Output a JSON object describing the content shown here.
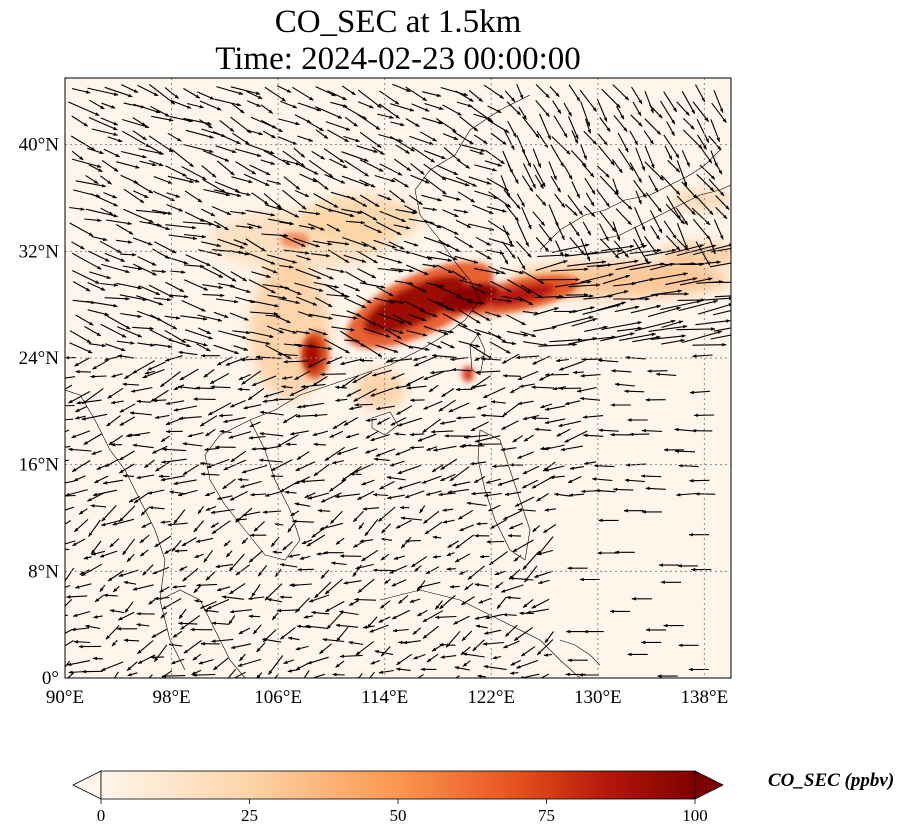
{
  "title": {
    "line1": "CO_SEC at 1.5km",
    "line2": "Time: 2024-02-23 00:00:00"
  },
  "map": {
    "lon_range": [
      90,
      140
    ],
    "lat_range": [
      0,
      45
    ],
    "lon_ticks": [
      "90°E",
      "98°E",
      "106°E",
      "114°E",
      "122°E",
      "130°E",
      "138°E"
    ],
    "lat_ticks": [
      "0°",
      "8°N",
      "16°N",
      "24°N",
      "32°N",
      "40°N"
    ],
    "gridlines": true,
    "field": "CO_SEC",
    "wind_vectors": true
  },
  "colorbar": {
    "label": "CO_SEC (ppbv)",
    "ticks": [
      "0",
      "25",
      "50",
      "75",
      "100"
    ],
    "range": [
      0,
      100
    ],
    "extend": "both",
    "colormap": [
      "#fff5eb",
      "#fdd0a2",
      "#fdae6b",
      "#f16913",
      "#d94801",
      "#a63603",
      "#7f0000"
    ]
  }
}
